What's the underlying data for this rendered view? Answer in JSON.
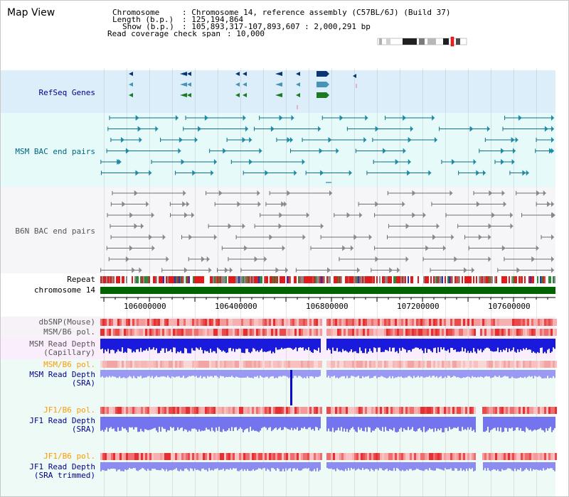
{
  "title": "Map View",
  "info": {
    "chromosome_key": "Chromosome",
    "chromosome_val": ": Chromosome 14, reference assembly (C57BL/6J) (Build 37)",
    "length_key": "Length (b.p.)",
    "length_val": ": 125,194,864",
    "show_key": "Show (b.p.)",
    "show_val": ": 105,893,317-107,893,607 : 2,000,291 bp",
    "coverage_key": "Read coverage check span",
    "coverage_val": ": 10,000"
  },
  "tracks": {
    "refseq": "RefSeq Genes",
    "msm_bac": "MSM BAC end pairs",
    "b6n_bac": "B6N BAC end pairs",
    "repeat": "Repeat",
    "chromosome": "chromosome 14",
    "dbsnp": "dbSNP(Mouse)",
    "msm_b6_pol_1": "MSM/B6 pol.",
    "msm_depth_cap_1": "MSM Read Depth",
    "msm_depth_cap_2": "(Capillary)",
    "msm_b6_pol_2": "MSM/B6 pol.",
    "msm_depth_sra_1": "MSM Read Depth",
    "msm_depth_sra_2": "(SRA)",
    "jf1_b6_pol_1": "JF1/B6 pol.",
    "jf1_depth_sra_1": "JF1 Read Depth",
    "jf1_depth_sra_2": "(SRA)",
    "jf1_b6_pol_2": "JF1/B6 pol.",
    "jf1_depth_trim_1": "JF1 Read Depth",
    "jf1_depth_trim_2": "(SRA trimmed)"
  },
  "axis": {
    "ticks": [
      "106000000",
      "106400000",
      "106800000",
      "107200000",
      "107600000"
    ]
  },
  "colors": {
    "refseq_bg": "#dceefa",
    "msm_bg": "#e6fafa",
    "b6n_bg": "#f5f5f7",
    "lower_bg": "#f2fbf2",
    "label_navy": "#00008b",
    "label_teal": "#006680",
    "label_gray": "#555555",
    "label_orange": "#ff9900",
    "chrom_green": "#006400",
    "depth_blue": "#1a1adc",
    "depth_light": "#8c8cf0"
  }
}
